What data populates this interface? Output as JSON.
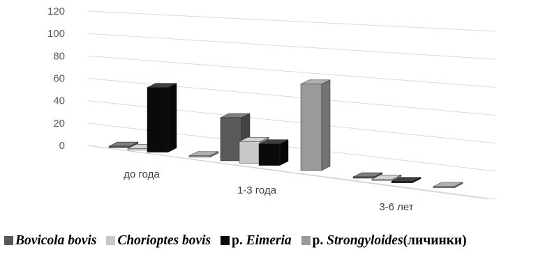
{
  "chart_data": {
    "type": "bar",
    "style": "3d-clustered-column",
    "categories": [
      "до года",
      "1-3 года",
      "3-6 лет"
    ],
    "series": [
      {
        "prefix": "",
        "name": "Bovicola bovis",
        "suffix": "",
        "color": "#595959",
        "values": [
          0,
          40,
          0
        ]
      },
      {
        "prefix": "",
        "name": "Chorioptes bovis",
        "suffix": "",
        "color": "#c8c8c8",
        "values": [
          0,
          20,
          0
        ]
      },
      {
        "prefix": "р.",
        "name": "Eimeria",
        "suffix": "",
        "color": "#0a0a0a",
        "values": [
          60,
          20,
          0
        ]
      },
      {
        "prefix": "р.",
        "name": "Strongyloides",
        "suffix": "(личинки)",
        "color": "#9a9a9a",
        "values": [
          0,
          80,
          0
        ]
      }
    ],
    "y_ticks": [
      "0",
      "20",
      "40",
      "60",
      "80",
      "100",
      "120"
    ],
    "ylim": [
      0,
      120
    ],
    "grid": true,
    "legend_position": "bottom"
  }
}
